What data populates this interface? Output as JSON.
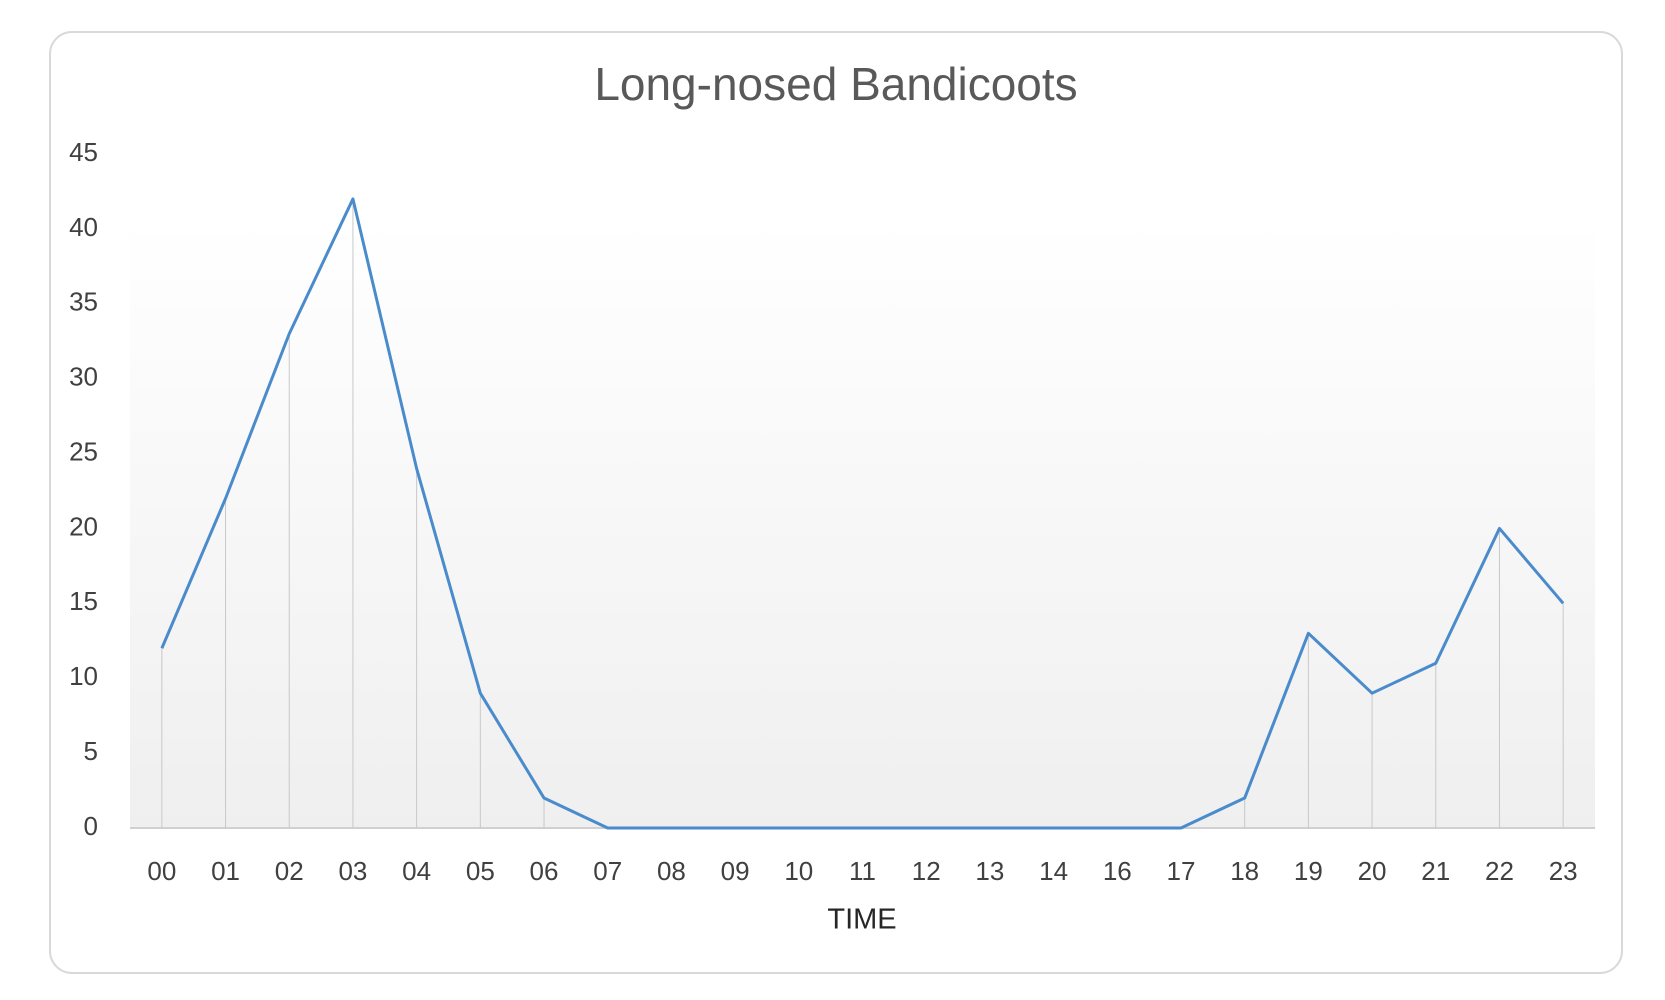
{
  "chart_data": {
    "type": "line",
    "title": "Long-nosed Bandicoots",
    "x_label": "TIME",
    "categories": [
      "00",
      "01",
      "02",
      "03",
      "04",
      "05",
      "06",
      "07",
      "08",
      "09",
      "10",
      "11",
      "12",
      "13",
      "14",
      "16",
      "17",
      "18",
      "19",
      "20",
      "21",
      "22",
      "23"
    ],
    "values": [
      12,
      22,
      33,
      42,
      24,
      9,
      2,
      0,
      0,
      0,
      0,
      0,
      0,
      0,
      0,
      0,
      0,
      2,
      13,
      9,
      11,
      20,
      15
    ],
    "color": "#4a8bcc",
    "ylim": [
      0,
      45
    ],
    "yticks": [
      0,
      5,
      10,
      15,
      20,
      25,
      30,
      35,
      40,
      45
    ],
    "drop_lines": true
  }
}
